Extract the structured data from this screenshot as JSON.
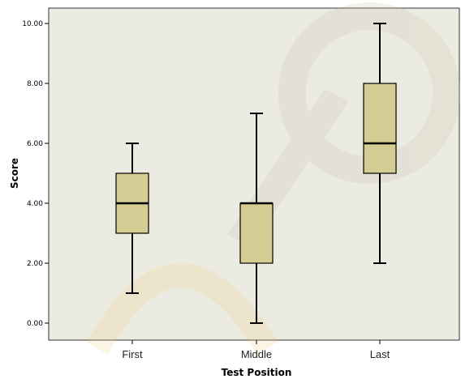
{
  "chart_data": {
    "type": "boxplot",
    "title": "",
    "xlabel": "Test Position",
    "ylabel": "Score",
    "ylim": [
      0,
      10
    ],
    "yticks": [
      "0.00",
      "2.00",
      "4.00",
      "6.00",
      "8.00",
      "10.00"
    ],
    "grid": false,
    "categories": [
      "First",
      "Middle",
      "Last"
    ],
    "boxes": [
      {
        "category": "First",
        "min": 1,
        "q1": 3,
        "median": 4,
        "q3": 5,
        "max": 6
      },
      {
        "category": "Middle",
        "min": 0,
        "q1": 2,
        "median": 4,
        "q3": 4,
        "max": 7
      },
      {
        "category": "Last",
        "min": 2,
        "q1": 5,
        "median": 6,
        "q3": 8,
        "max": 10
      }
    ],
    "colors": {
      "plot_background": "#ebebe2",
      "box_fill": "#d4cc92",
      "box_stroke": "#000000",
      "frame": "#333333"
    }
  }
}
